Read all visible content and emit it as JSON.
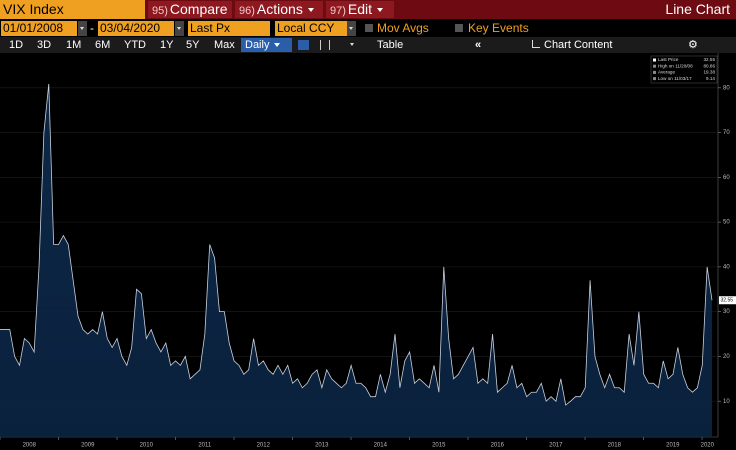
{
  "toolbar": {
    "security": "VIX Index",
    "buttons": [
      {
        "num": "95)",
        "label": "Compare"
      },
      {
        "num": "96)",
        "label": "Actions"
      },
      {
        "num": "97)",
        "label": "Edit"
      }
    ],
    "view": "Line Chart",
    "start_date": "01/01/2008",
    "separator": "-",
    "end_date": "03/04/2020",
    "field": "Last Px",
    "currency": "Local CCY",
    "mov_avgs": "Mov Avgs",
    "key_events": "Key Events",
    "periods": [
      "1D",
      "3D",
      "1M",
      "6M",
      "YTD",
      "1Y",
      "5Y",
      "Max"
    ],
    "frequency": "Daily",
    "table": "Table",
    "chart_content": "Chart Content"
  },
  "chart_data": {
    "type": "line",
    "color": "#c9d1dc",
    "fill": "#0c2747",
    "values": [
      26,
      26,
      26,
      20,
      18,
      24,
      23,
      21,
      40,
      70,
      80.86,
      45,
      45,
      47,
      45,
      37,
      29,
      26,
      25,
      26,
      25,
      30,
      24,
      22,
      24,
      20,
      18,
      22,
      35,
      34,
      24,
      26,
      23,
      21,
      23,
      18,
      19,
      18,
      20,
      15,
      16,
      17,
      25,
      45,
      42,
      30,
      30,
      23,
      19,
      18,
      16,
      17,
      24,
      18,
      19,
      17,
      16,
      18,
      16,
      18,
      14,
      15,
      13,
      14,
      16,
      17,
      13,
      17,
      15,
      14,
      13,
      14,
      18,
      14,
      14,
      13,
      11,
      11,
      16,
      12,
      16,
      25,
      13,
      19,
      21,
      14,
      15,
      14,
      13,
      18,
      12,
      40,
      24,
      15,
      16,
      18,
      20,
      22,
      14,
      15,
      14,
      25,
      12,
      13,
      14,
      18,
      13,
      14,
      11,
      12,
      12,
      14,
      10,
      11,
      10,
      15,
      9.14,
      10,
      11,
      11,
      13,
      37,
      20,
      16,
      13,
      16,
      13,
      13,
      12,
      25,
      18,
      30,
      16,
      14,
      14,
      13,
      19,
      15,
      16,
      22,
      16,
      13,
      12,
      13,
      18,
      40,
      32.55
    ],
    "xlim": [
      2008,
      2020.17
    ],
    "xticks": [
      2008,
      2009,
      2010,
      2011,
      2012,
      2013,
      2014,
      2015,
      2016,
      2017,
      2018,
      2019,
      2020
    ],
    "ylim": [
      2,
      88
    ],
    "yticks": [
      10,
      20,
      30,
      40,
      50,
      60,
      70,
      80
    ],
    "grid": true,
    "legend_position": "upper right",
    "legend": [
      {
        "label": "Last Price",
        "value": 32.55
      },
      {
        "label": "High on 11/20/08",
        "value": 80.86
      },
      {
        "label": "Average",
        "value": 19.38
      },
      {
        "label": "Low on 11/03/17",
        "value": 9.14
      }
    ]
  }
}
